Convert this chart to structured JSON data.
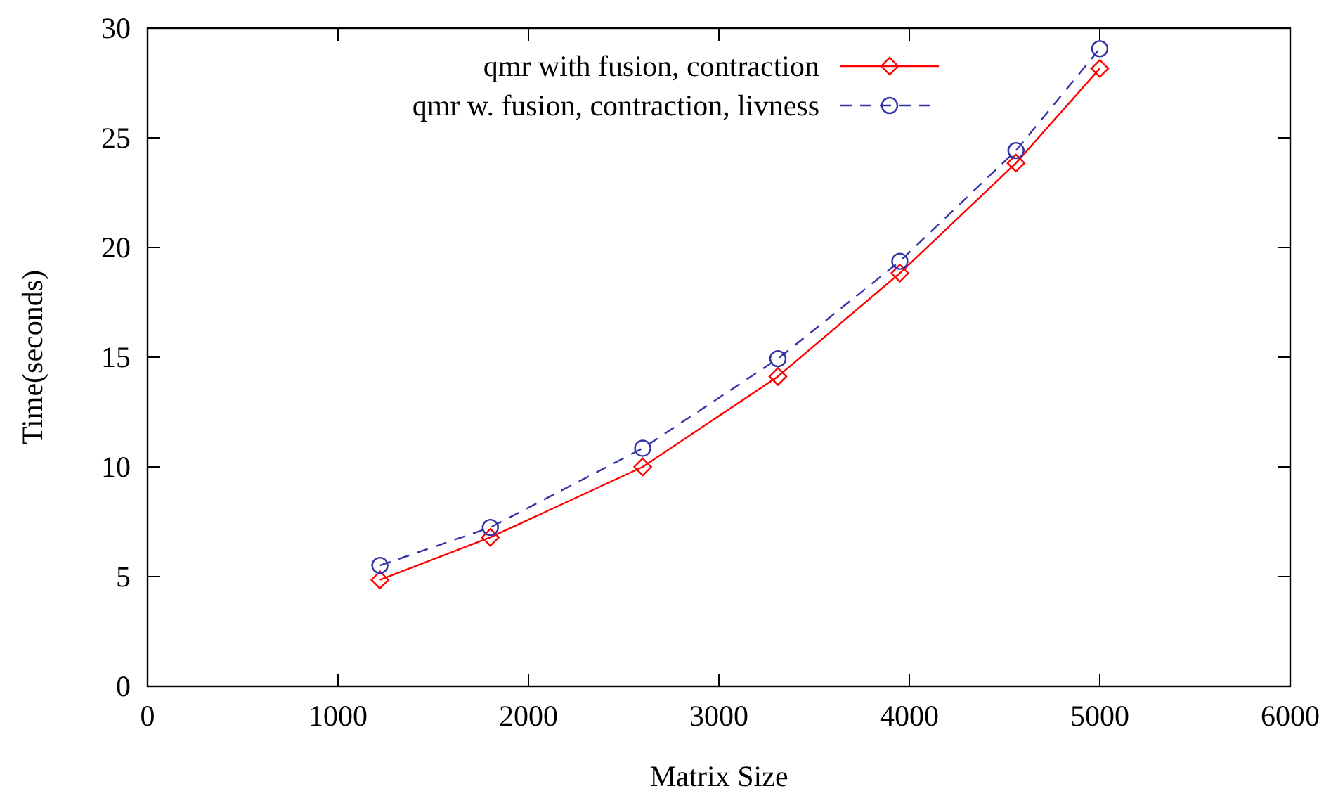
{
  "chart_data": {
    "type": "line",
    "xlabel": "Matrix Size",
    "ylabel": "Time(seconds)",
    "xlim": [
      0,
      6000
    ],
    "xticks": [
      0,
      1000,
      2000,
      3000,
      4000,
      5000,
      6000
    ],
    "ylim": [
      0,
      30
    ],
    "yticks": [
      0,
      5,
      10,
      15,
      20,
      25,
      30
    ],
    "grid": false,
    "legend": "top",
    "series": [
      {
        "name": "qmr with fusion, contraction",
        "color": "#ff0000",
        "marker": "diamond",
        "line_style": "solid",
        "x": [
          1220,
          1800,
          2600,
          3310,
          3950,
          4560,
          5000
        ],
        "values": [
          4.85,
          6.79,
          10.0,
          14.12,
          18.83,
          23.85,
          28.16
        ]
      },
      {
        "name": "qmr w. fusion, contraction, livness",
        "color": "#3333aa",
        "marker": "circle",
        "line_style": "dashed",
        "x": [
          1220,
          1800,
          2600,
          3310,
          3950,
          4560,
          5000
        ],
        "values": [
          5.51,
          7.24,
          10.85,
          14.93,
          19.37,
          24.42,
          29.06
        ]
      }
    ]
  }
}
